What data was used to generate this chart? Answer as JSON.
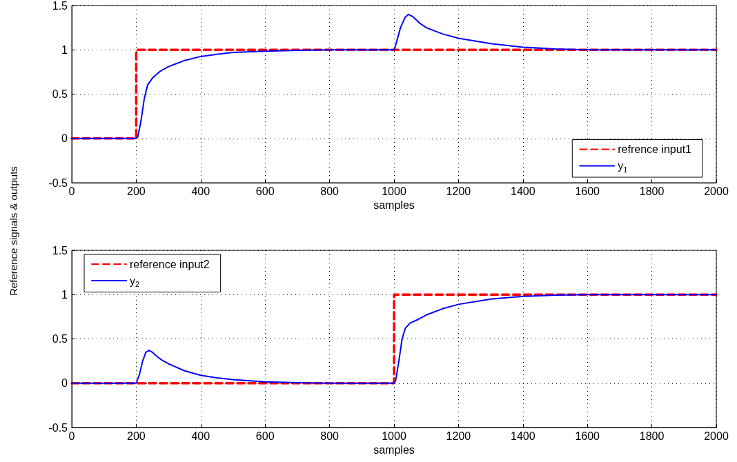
{
  "chart_data": [
    {
      "type": "line",
      "ylabel": "Reference signals & outputs",
      "xlabel": "samples",
      "xlim": [
        0,
        2000
      ],
      "xticks": [
        0,
        200,
        400,
        600,
        800,
        1000,
        1200,
        1400,
        1600,
        1800,
        2000
      ],
      "ylim": [
        -0.5,
        1.5
      ],
      "yticks": [
        -0.5,
        0,
        0.5,
        1,
        1.5
      ],
      "grid": true,
      "legend": "bottom right",
      "marker": "none",
      "series": [
        {
          "name": "refrence input1",
          "color": "#ff0000",
          "line_style": "dashed",
          "x": [
            0,
            200,
            200,
            2000
          ],
          "values": [
            0,
            0,
            1,
            1
          ]
        },
        {
          "name": "y$_{1}$",
          "color": "#0000ff",
          "line_style": "solid",
          "x": [
            0,
            200,
            205,
            215,
            225,
            235,
            250,
            275,
            300,
            350,
            400,
            450,
            500,
            600,
            700,
            800,
            1000,
            1005,
            1020,
            1035,
            1045,
            1060,
            1080,
            1100,
            1150,
            1200,
            1300,
            1400,
            1500,
            1600,
            2000
          ],
          "values": [
            0,
            0,
            0.02,
            0.2,
            0.45,
            0.6,
            0.68,
            0.76,
            0.81,
            0.88,
            0.925,
            0.95,
            0.97,
            0.985,
            0.995,
            1,
            1,
            1.05,
            1.25,
            1.37,
            1.4,
            1.37,
            1.3,
            1.25,
            1.18,
            1.13,
            1.07,
            1.03,
            1.01,
            1,
            1
          ]
        }
      ]
    },
    {
      "type": "line",
      "xlabel": "samples",
      "xlim": [
        0,
        2000
      ],
      "xticks": [
        0,
        200,
        400,
        600,
        800,
        1000,
        1200,
        1400,
        1600,
        1800,
        2000
      ],
      "ylim": [
        -0.5,
        1.5
      ],
      "yticks": [
        -0.5,
        0,
        0.5,
        1,
        1.5
      ],
      "grid": true,
      "legend": "top left",
      "marker": "none",
      "series": [
        {
          "name": "reference input2",
          "color": "#ff0000",
          "line_style": "dashed",
          "x": [
            0,
            1000,
            1000,
            2000
          ],
          "values": [
            0,
            0,
            1,
            1
          ]
        },
        {
          "name": "y$_{2}$",
          "color": "#0000ff",
          "line_style": "solid",
          "x": [
            0,
            200,
            210,
            220,
            230,
            240,
            250,
            265,
            280,
            300,
            350,
            400,
            450,
            500,
            600,
            700,
            800,
            1000,
            1005,
            1015,
            1025,
            1035,
            1050,
            1075,
            1100,
            1150,
            1200,
            1300,
            1400,
            1500,
            1600,
            2000
          ],
          "values": [
            0,
            0,
            0.1,
            0.25,
            0.35,
            0.37,
            0.35,
            0.3,
            0.26,
            0.22,
            0.14,
            0.09,
            0.06,
            0.04,
            0.015,
            0.005,
            0,
            0,
            0.03,
            0.25,
            0.5,
            0.62,
            0.68,
            0.72,
            0.77,
            0.84,
            0.89,
            0.95,
            0.98,
            0.995,
            1,
            1
          ]
        }
      ]
    }
  ]
}
